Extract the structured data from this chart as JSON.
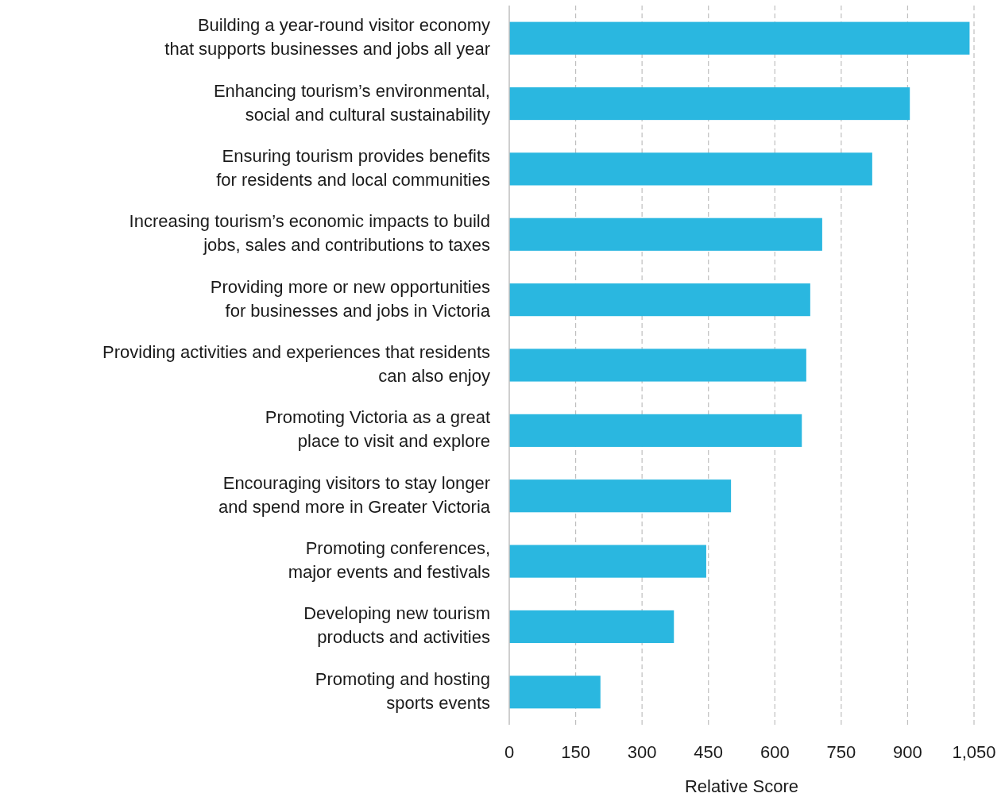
{
  "chart_data": {
    "type": "bar",
    "orientation": "horizontal",
    "xlabel": "Relative Score",
    "categories": [
      "Building a year-round visitor economy\nthat supports businesses and jobs all year",
      "Enhancing tourism’s environmental,\nsocial and cultural sustainability",
      "Ensuring tourism provides benefits\nfor residents and local communities",
      "Increasing tourism’s economic impacts to build\njobs, sales and contributions to taxes",
      "Providing more or new opportunities\nfor businesses and jobs in Victoria",
      "Providing activities and experiences that residents\ncan also enjoy",
      "Promoting Victoria as a great\nplace to visit and explore",
      "Encouraging visitors to stay longer\nand spend more in Greater Victoria",
      "Promoting conferences,\nmajor events and festivals",
      "Developing new tourism\nproducts and activities",
      "Promoting and hosting\nsports events"
    ],
    "values": [
      1040,
      905,
      820,
      707,
      680,
      671,
      661,
      501,
      445,
      372,
      206
    ],
    "color": "#2ab7e0",
    "xlim": [
      0,
      1050
    ],
    "xticks": [
      0,
      150,
      300,
      450,
      600,
      750,
      900,
      {
        "value": 1050,
        "label": "1,050"
      }
    ],
    "grid": "x"
  }
}
